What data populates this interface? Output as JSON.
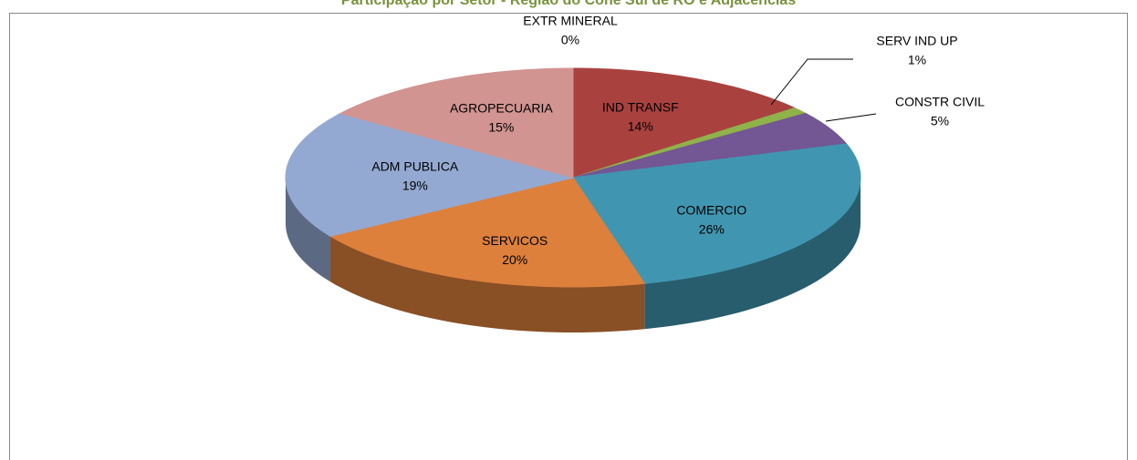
{
  "chart_data": {
    "type": "pie3d",
    "title": "Participação por Setor - Região do Cone Sul de RO e Adjacências",
    "categories": [
      "EXTR MINERAL",
      "IND TRANSF",
      "SERV IND UP",
      "CONSTR CIVIL",
      "COMERCIO",
      "SERVICOS",
      "ADM PUBLICA",
      "AGROPECUARIA"
    ],
    "values": [
      0,
      14,
      1,
      5,
      26,
      20,
      19,
      15
    ],
    "value_labels": [
      "0%",
      "14%",
      "1%",
      "5%",
      "26%",
      "20%",
      "19%",
      "15%"
    ],
    "colors": [
      "#4f81bd",
      "#a9423f",
      "#8fb24a",
      "#735694",
      "#4096b0",
      "#dd803c",
      "#94a9d2",
      "#d19491"
    ]
  }
}
